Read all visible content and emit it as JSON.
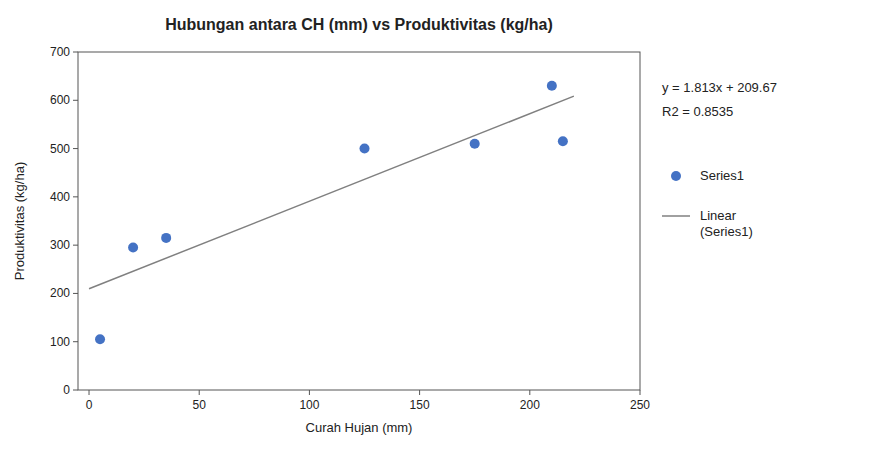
{
  "chart_data": {
    "type": "scatter",
    "title": "Hubungan antara CH (mm) vs Produktivitas (kg/ha)",
    "x_label": "Curah Hujan (mm)",
    "y_label": "Produktivitas (kg/ha)",
    "series": [
      {
        "name": "Series1",
        "type": "scatter",
        "marker": "circle",
        "color": "#4472C4",
        "x": [
          5,
          20,
          35,
          125,
          175,
          210,
          215
        ],
        "values": [
          105,
          295,
          315,
          500,
          510,
          630,
          515
        ]
      },
      {
        "name": "Linear\n(Series1)",
        "type": "line",
        "line_style": "solid",
        "color": "#808080",
        "x": [
          0,
          220
        ],
        "values": [
          209.67,
          608.53
        ]
      }
    ],
    "annotations": [
      "y = 1.813x + 209.67",
      "R2 = 0.8535"
    ],
    "xlim": [
      -5,
      250
    ],
    "ylim": [
      0,
      700
    ],
    "xticks": [
      0,
      50,
      100,
      150,
      200,
      250
    ],
    "yticks": [
      0,
      100,
      200,
      300,
      400,
      500,
      600,
      700
    ],
    "grid": false,
    "legend": "right"
  }
}
